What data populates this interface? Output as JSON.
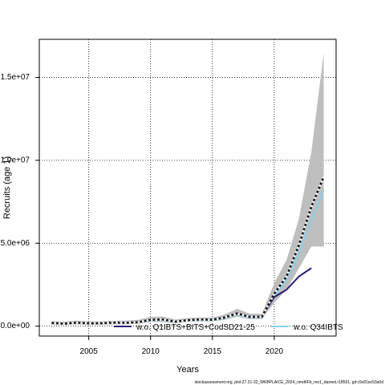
{
  "chart_data": {
    "type": "line",
    "xlabel": "Years",
    "ylabel": "Recruits (age 1)",
    "xlim": [
      2001,
      2025
    ],
    "ylim": [
      -600000,
      17300000
    ],
    "x_ticks": [
      2005,
      2010,
      2015,
      2020
    ],
    "y_ticks": [
      0,
      5000000,
      10000000,
      15000000
    ],
    "y_tick_labels": [
      "0.0e+00",
      "5.0e+06",
      "1.0e+07",
      "1.5e+07"
    ],
    "grid": true,
    "legend_position": "bottom",
    "x": [
      2002,
      2003,
      2004,
      2005,
      2006,
      2007,
      2008,
      2009,
      2010,
      2011,
      2012,
      2013,
      2014,
      2015,
      2016,
      2017,
      2018,
      2019,
      2020,
      2021,
      2022,
      2023,
      2024
    ],
    "band": {
      "lower": [
        90000,
        60000,
        110000,
        80000,
        80000,
        110000,
        100000,
        130000,
        250000,
        250000,
        170000,
        260000,
        290000,
        280000,
        380000,
        560000,
        420000,
        420000,
        1400000,
        2200000,
        3500000,
        4800000,
        4800000
      ],
      "upper": [
        300000,
        260000,
        330000,
        280000,
        280000,
        320000,
        330000,
        380000,
        560000,
        580000,
        400000,
        480000,
        520000,
        520000,
        700000,
        1050000,
        750000,
        750000,
        2600000,
        4000000,
        6500000,
        10500000,
        16500000
      ],
      "color": "#bebebe"
    },
    "series": [
      {
        "name": "",
        "style": "dashed-black",
        "color": "#1a1a1a",
        "values": [
          190000,
          150000,
          210000,
          170000,
          170000,
          210000,
          200000,
          240000,
          380000,
          400000,
          270000,
          360000,
          400000,
          380000,
          520000,
          760000,
          560000,
          560000,
          1950000,
          3000000,
          4900000,
          7200000,
          9000000
        ]
      },
      {
        "name": "w.o. Q1IBTS+BITS+CodSD21-25",
        "style": "solid",
        "color": "#2b1a78",
        "values": [
          200000,
          160000,
          220000,
          180000,
          180000,
          220000,
          210000,
          250000,
          400000,
          410000,
          280000,
          380000,
          420000,
          390000,
          540000,
          780000,
          580000,
          580000,
          1750000,
          2200000,
          3000000,
          3500000,
          null
        ]
      },
      {
        "name": "w.o. Q34IBTS",
        "style": "solid",
        "color": "#87ceeb",
        "values": [
          180000,
          140000,
          200000,
          160000,
          160000,
          200000,
          190000,
          220000,
          350000,
          370000,
          250000,
          330000,
          370000,
          350000,
          480000,
          700000,
          520000,
          520000,
          1800000,
          2800000,
          4400000,
          6400000,
          8200000
        ]
      }
    ]
  },
  "footer": "stockassessment.org, plot:27.21-32_WKBPLAICE_2024_nmd6Fb_mo1_damed.r18561, git:c9c81ac53a0d"
}
